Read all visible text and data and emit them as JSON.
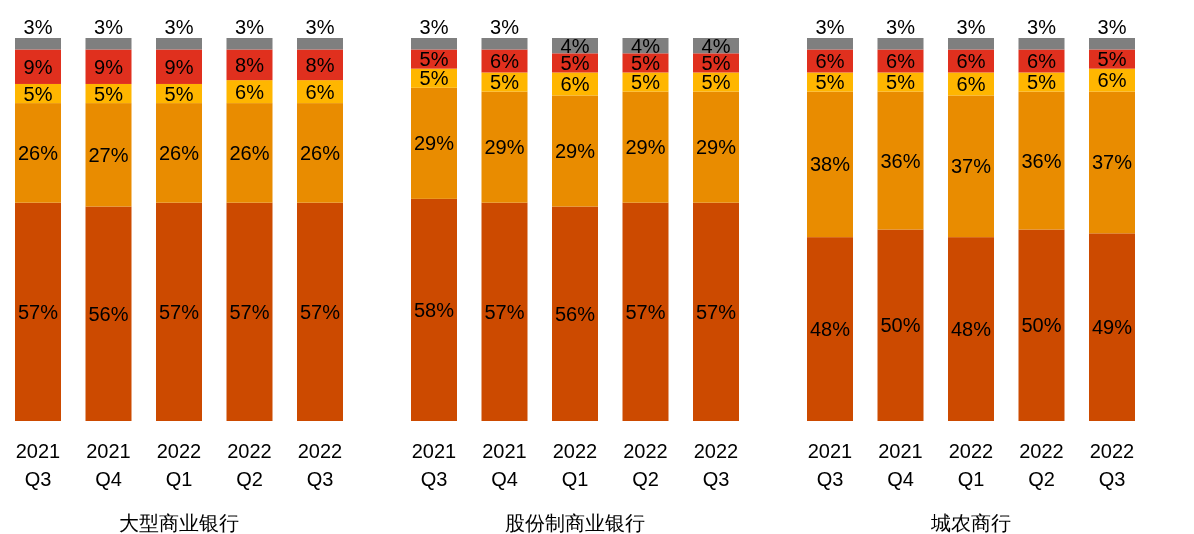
{
  "chart_data": [
    {
      "type": "bar",
      "stacked": true,
      "xlabel": "大型商业银行",
      "categories": [
        "2021 Q3",
        "2021 Q4",
        "2022 Q1",
        "2022 Q2",
        "2022 Q3"
      ],
      "series": [
        {
          "color": "#cc4a00",
          "values": [
            57,
            56,
            57,
            57,
            57
          ],
          "value_labels": [
            "57%",
            "56%",
            "57%",
            "57%",
            "57%"
          ]
        },
        {
          "color": "#e98c00",
          "values": [
            26,
            27,
            26,
            26,
            26
          ],
          "value_labels": [
            "26%",
            "27%",
            "26%",
            "26%",
            "26%"
          ]
        },
        {
          "color": "#ffb600",
          "values": [
            5,
            5,
            5,
            6,
            6
          ],
          "value_labels": [
            "5%",
            "5%",
            "5%",
            "6%",
            "6%"
          ]
        },
        {
          "color": "#e0301e",
          "values": [
            9,
            9,
            9,
            8,
            8
          ],
          "value_labels": [
            "9%",
            "9%",
            "9%",
            "8%",
            "8%"
          ]
        },
        {
          "color": "#7f7f7f",
          "values": [
            3,
            3,
            3,
            3,
            3
          ],
          "value_labels": [
            "3%",
            "3%",
            "3%",
            "3%",
            "3%"
          ]
        }
      ]
    },
    {
      "type": "bar",
      "stacked": true,
      "xlabel": "股份制商业银行",
      "categories": [
        "2021 Q3",
        "2021 Q4",
        "2022 Q1",
        "2022 Q2",
        "2022 Q3"
      ],
      "series": [
        {
          "color": "#cc4a00",
          "values": [
            58,
            57,
            56,
            57,
            57
          ],
          "value_labels": [
            "58%",
            "57%",
            "56%",
            "57%",
            "57%"
          ]
        },
        {
          "color": "#e98c00",
          "values": [
            29,
            29,
            29,
            29,
            29
          ],
          "value_labels": [
            "29%",
            "29%",
            "29%",
            "29%",
            "29%"
          ]
        },
        {
          "color": "#ffb600",
          "values": [
            5,
            5,
            6,
            5,
            5
          ],
          "value_labels": [
            "5%",
            "5%",
            "6%",
            "5%",
            "5%"
          ]
        },
        {
          "color": "#e0301e",
          "values": [
            5,
            6,
            5,
            5,
            5
          ],
          "value_labels": [
            "5%",
            "6%",
            "5%",
            "5%",
            "5%"
          ]
        },
        {
          "color": "#7f7f7f",
          "values": [
            3,
            3,
            4,
            4,
            4
          ],
          "value_labels": [
            "3%",
            "3%",
            "4%",
            "4%",
            "4%"
          ]
        }
      ]
    },
    {
      "type": "bar",
      "stacked": true,
      "xlabel": "城农商行",
      "categories": [
        "2021 Q3",
        "2021 Q4",
        "2022 Q1",
        "2022 Q2",
        "2022 Q3"
      ],
      "series": [
        {
          "color": "#cc4a00",
          "values": [
            48,
            50,
            48,
            50,
            49
          ],
          "value_labels": [
            "48%",
            "50%",
            "48%",
            "50%",
            "49%"
          ]
        },
        {
          "color": "#e98c00",
          "values": [
            38,
            36,
            37,
            36,
            37
          ],
          "value_labels": [
            "38%",
            "36%",
            "37%",
            "36%",
            "37%"
          ]
        },
        {
          "color": "#ffb600",
          "values": [
            5,
            5,
            6,
            5,
            6
          ],
          "value_labels": [
            "5%",
            "5%",
            "6%",
            "5%",
            "6%"
          ]
        },
        {
          "color": "#e0301e",
          "values": [
            6,
            6,
            6,
            6,
            5
          ],
          "value_labels": [
            "6%",
            "6%",
            "6%",
            "6%",
            "5%"
          ]
        },
        {
          "color": "#7f7f7f",
          "values": [
            3,
            3,
            3,
            3,
            3
          ],
          "value_labels": [
            "3%",
            "3%",
            "3%",
            "3%",
            "3%"
          ]
        }
      ]
    }
  ]
}
